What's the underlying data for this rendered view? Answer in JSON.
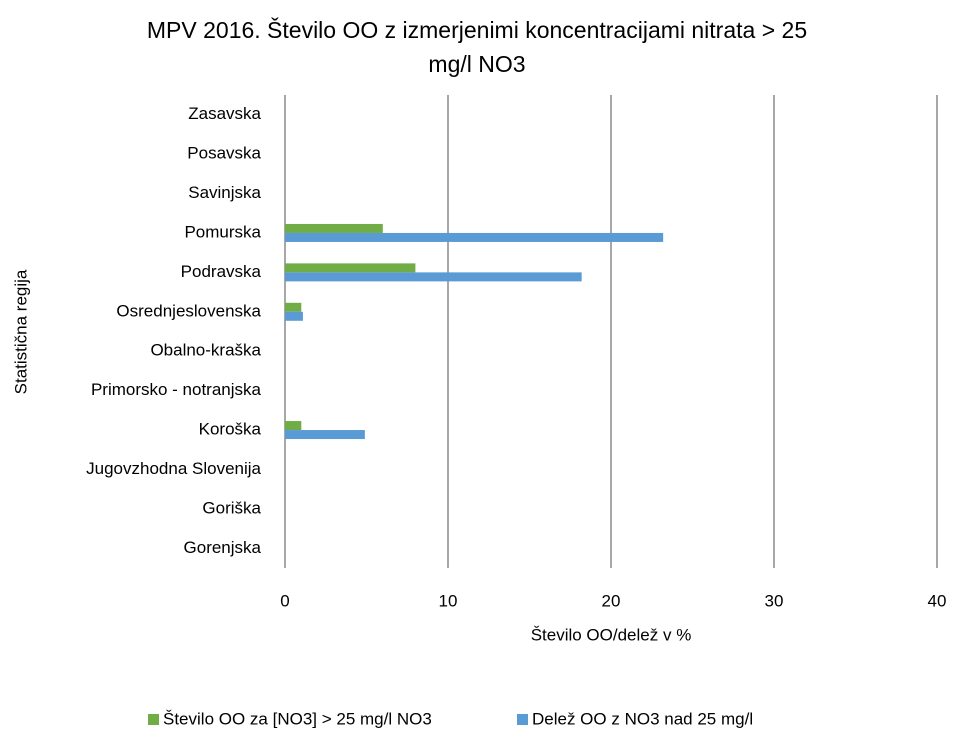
{
  "chart_data": {
    "type": "barh",
    "title": "MPV 2016. Število OO z izmerjenimi koncentracijami nitrata > 25",
    "subtitle": "mg/l NO3",
    "x_label": "Število OO/delež  v %",
    "y_label": "Statistična regija",
    "categories": [
      "Zasavska",
      "Posavska",
      "Savinjska",
      "Pomurska",
      "Podravska",
      "Osrednjeslovenska",
      "Obalno-kraška",
      "Primorsko - notranjska",
      "Koroška",
      "Jugovzhodna Slovenija",
      "Goriška",
      "Gorenjska"
    ],
    "series": [
      {
        "name": "Število OO za [NO3] > 25 mg/l NO3",
        "color": "#70ad47",
        "values": [
          0,
          0,
          0,
          6,
          8,
          1,
          0,
          0,
          1,
          0,
          0,
          0
        ]
      },
      {
        "name": "Delež OO z NO3 nad 25 mg/l",
        "color": "#5b9bd5",
        "values": [
          0,
          0,
          0,
          23.2,
          18.2,
          1.1,
          0,
          0,
          4.9,
          0,
          0,
          0
        ]
      }
    ],
    "xlim": [
      0,
      40
    ],
    "xticks": [
      0,
      10,
      20,
      30,
      40
    ],
    "grid": true
  }
}
